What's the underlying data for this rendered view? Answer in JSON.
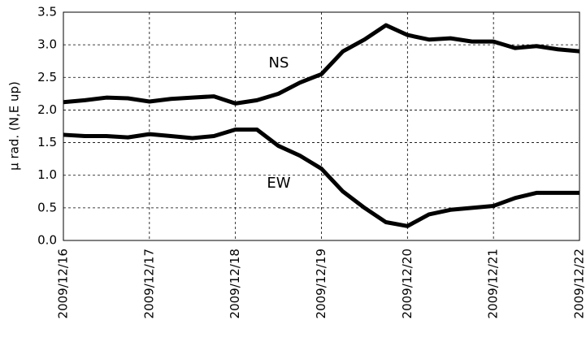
{
  "chart_data": {
    "type": "line",
    "y_label": "μ rad. (N,E up)",
    "x": [
      0,
      0.25,
      0.5,
      0.75,
      1,
      1.25,
      1.5,
      1.75,
      2,
      2.25,
      2.5,
      2.75,
      3,
      3.25,
      3.5,
      3.75,
      4,
      4.25,
      4.5,
      4.75,
      5,
      5.25,
      5.5,
      5.75,
      6
    ],
    "series": [
      {
        "name": "NS",
        "color": "#000000",
        "values": [
          2.12,
          2.15,
          2.19,
          2.18,
          2.13,
          2.17,
          2.19,
          2.21,
          2.1,
          2.15,
          2.25,
          2.42,
          2.55,
          2.9,
          3.08,
          3.3,
          3.15,
          3.08,
          3.1,
          3.05,
          3.05,
          2.95,
          2.98,
          2.93,
          2.9
        ]
      },
      {
        "name": "EW",
        "color": "#000000",
        "values": [
          1.62,
          1.6,
          1.6,
          1.58,
          1.63,
          1.6,
          1.57,
          1.6,
          1.7,
          1.7,
          1.45,
          1.3,
          1.1,
          0.75,
          0.5,
          0.28,
          0.22,
          0.4,
          0.47,
          0.5,
          0.53,
          0.65,
          0.73,
          0.73,
          0.73
        ]
      }
    ],
    "xlim": [
      0,
      6
    ],
    "xticks": [
      {
        "value": 0,
        "label": "2009/12/16"
      },
      {
        "value": 1,
        "label": "2009/12/17"
      },
      {
        "value": 2,
        "label": "2009/12/18"
      },
      {
        "value": 3,
        "label": "2009/12/19"
      },
      {
        "value": 4,
        "label": "2009/12/20"
      },
      {
        "value": 5,
        "label": "2009/12/21"
      },
      {
        "value": 6,
        "label": "2009/12/22"
      }
    ],
    "ylim": [
      0,
      3.5
    ],
    "yticks": [
      {
        "value": 0,
        "label": "0.0"
      },
      {
        "value": 0.5,
        "label": "0.5"
      },
      {
        "value": 1,
        "label": "1.0"
      },
      {
        "value": 1.5,
        "label": "1.5"
      },
      {
        "value": 2,
        "label": "2.0"
      },
      {
        "value": 2.5,
        "label": "2.5"
      },
      {
        "value": 3,
        "label": "3.0"
      },
      {
        "value": 3.5,
        "label": "3.5"
      }
    ],
    "grid": true
  }
}
